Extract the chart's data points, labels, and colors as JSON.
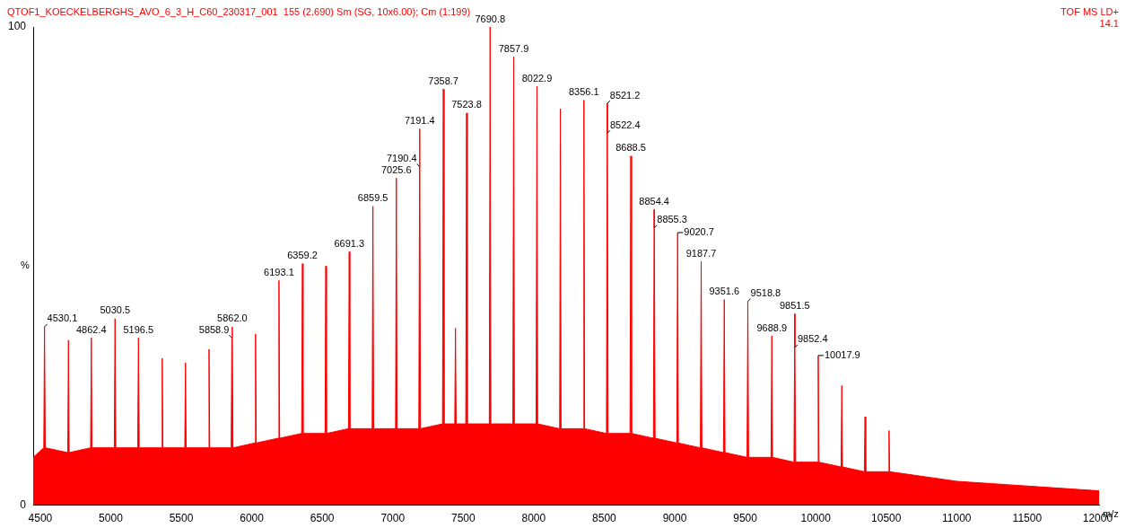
{
  "chart_data": {
    "type": "area",
    "title": "QTOF1_KOECKELBERGHS_AVO_6_3_H_C60_230317_001  155 (2.690) Sm (SG, 10x6.00); Cm (1:199)",
    "xlabel": "m/z",
    "ylabel": "%",
    "annotations": [
      "TOF MS LD+",
      "14.1",
      {
        "text": "4530.1",
        "x": 4530.1,
        "y": 37.3
      },
      {
        "text": "4862.4",
        "x": 4862.4,
        "y": 35
      },
      {
        "text": "5030.5",
        "x": 5030.5,
        "y": 39
      },
      {
        "text": "5196.5",
        "x": 5196.5,
        "y": 35
      },
      {
        "text": "5858.9",
        "x": 5858.9,
        "y": 35
      },
      {
        "text": "5862.0",
        "x": 5862,
        "y": 37.3
      },
      {
        "text": "6193.1",
        "x": 6193.1,
        "y": 47
      },
      {
        "text": "6359.2",
        "x": 6359.2,
        "y": 50.5
      },
      {
        "text": "6691.3",
        "x": 6691.3,
        "y": 53
      },
      {
        "text": "6859.5",
        "x": 6859.5,
        "y": 62.5
      },
      {
        "text": "7025.6",
        "x": 7025.6,
        "y": 68.4
      },
      {
        "text": "7190.4",
        "x": 7190.4,
        "y": 70.8
      },
      {
        "text": "7191.4",
        "x": 7191.4,
        "y": 78.7
      },
      {
        "text": "7358.7",
        "x": 7358.7,
        "y": 87
      },
      {
        "text": "7523.8",
        "x": 7523.8,
        "y": 82
      },
      {
        "text": "7690.8",
        "x": 7690.8,
        "y": 100
      },
      {
        "text": "7857.9",
        "x": 7857.9,
        "y": 93.8
      },
      {
        "text": "8022.9",
        "x": 8022.9,
        "y": 87.6
      },
      {
        "text": "8356.1",
        "x": 8356.1,
        "y": 84.7
      },
      {
        "text": "8521.2",
        "x": 8521.2,
        "y": 84
      },
      {
        "text": "8522.4",
        "x": 8522.4,
        "y": 77.8
      },
      {
        "text": "8688.5",
        "x": 8688.5,
        "y": 73
      },
      {
        "text": "8854.4",
        "x": 8854.4,
        "y": 61.8
      },
      {
        "text": "8855.3",
        "x": 8855.3,
        "y": 58
      },
      {
        "text": "9020.7",
        "x": 9020.7,
        "y": 57
      },
      {
        "text": "9187.7",
        "x": 9187.7,
        "y": 51
      },
      {
        "text": "9351.6",
        "x": 9351.6,
        "y": 43
      },
      {
        "text": "9518.8",
        "x": 9518.8,
        "y": 42.6
      },
      {
        "text": "9688.9",
        "x": 9688.9,
        "y": 35.4
      },
      {
        "text": "9851.5",
        "x": 9851.5,
        "y": 40
      },
      {
        "text": "9852.4",
        "x": 9852.4,
        "y": 33
      },
      {
        "text": "10017.9",
        "x": 10017.9,
        "y": 31.3
      }
    ],
    "x": [
      4450,
      4525,
      4530.1,
      4536,
      4695,
      4700,
      4705,
      4857,
      4862.4,
      4867,
      5025,
      5030.5,
      5036,
      5191,
      5196.5,
      5202,
      5360,
      5365,
      5370,
      5525,
      5530,
      5535,
      5692,
      5697,
      5702,
      5854,
      5858.9,
      5862,
      5867,
      6022,
      6027,
      6032,
      6188,
      6193.1,
      6198,
      6354,
      6359.2,
      6364,
      6520,
      6525,
      6530,
      6686,
      6691.3,
      6696,
      6854,
      6859.5,
      6865,
      7020,
      7025.6,
      7031,
      7185,
      7190.4,
      7191.4,
      7197,
      7353,
      7358.7,
      7364,
      7440,
      7445,
      7450,
      7518,
      7523.8,
      7529,
      7685,
      7690.8,
      7696,
      7852,
      7857.9,
      7863,
      8017,
      8022.9,
      8028,
      8184,
      8189,
      8194,
      8351,
      8356.1,
      8361,
      8516,
      8521.2,
      8522.4,
      8528,
      8683,
      8688.5,
      8694,
      8849,
      8854.4,
      8855.3,
      8861,
      9015,
      9020.7,
      9026,
      9182,
      9187.7,
      9193,
      9346,
      9351.6,
      9357,
      9513,
      9518.8,
      9524,
      9683,
      9688.9,
      9694,
      9846,
      9851.5,
      9852.4,
      9858,
      10012,
      10017.9,
      10023,
      10180,
      10185,
      10190,
      10345,
      10350,
      10355,
      10515,
      10520,
      10525,
      11000,
      12010
    ],
    "series": [
      {
        "color": "#ff0000",
        "values": [
          10,
          12,
          37.3,
          12,
          11,
          34.5,
          11,
          12,
          35,
          12,
          12,
          39,
          12,
          12,
          35,
          12,
          12,
          30.7,
          12,
          12,
          29.8,
          12,
          12,
          32.6,
          12,
          12,
          35,
          37.3,
          12,
          13,
          35.8,
          13,
          14,
          47,
          14,
          15,
          50.5,
          15,
          15,
          50,
          15,
          16,
          53,
          16,
          16,
          62.5,
          16,
          16,
          68.4,
          16,
          16,
          70.8,
          78.7,
          16,
          17,
          87,
          17,
          17,
          37,
          17,
          17,
          82,
          17,
          17,
          100,
          17,
          17,
          93.8,
          17,
          17,
          87.6,
          17,
          16,
          82.9,
          16,
          16,
          84.7,
          16,
          15,
          84,
          77.8,
          15,
          15,
          73,
          15,
          14,
          61.8,
          58,
          14,
          13,
          57,
          13,
          12,
          51,
          12,
          11,
          43,
          11,
          10,
          42.6,
          10,
          10,
          35.4,
          10,
          9,
          40,
          33,
          9,
          9,
          31.3,
          9,
          8,
          25,
          8,
          7,
          18.5,
          7,
          7,
          15.6,
          7,
          5,
          3
        ]
      }
    ],
    "xlim": [
      4450,
      12010
    ],
    "xticks": [
      4500,
      5000,
      5500,
      6000,
      6500,
      7000,
      7500,
      8000,
      8500,
      9000,
      9500,
      10000,
      10500,
      11000,
      11500,
      12000
    ],
    "ylim": [
      0,
      100
    ],
    "yticks": [
      0,
      100
    ],
    "grid": false,
    "legend": false
  }
}
